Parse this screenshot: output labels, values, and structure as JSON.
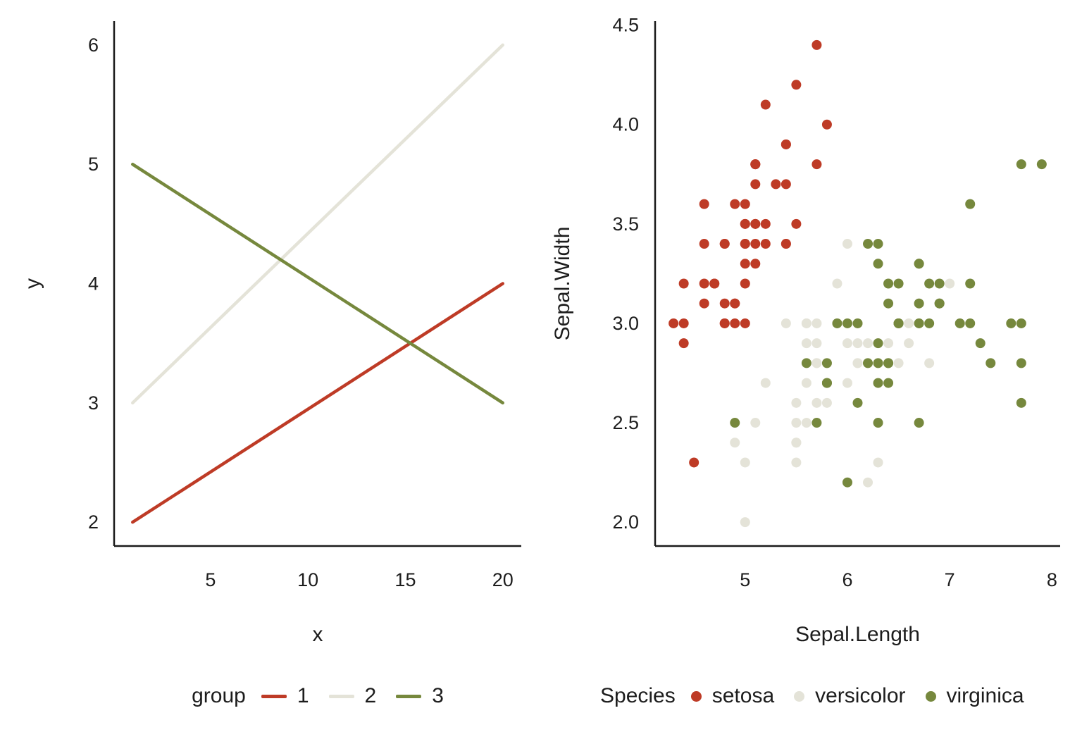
{
  "figure": {
    "background": "#ffffff",
    "text_color": "#1d1d1d",
    "axis_color": "#1a1a1a"
  },
  "chart_data": [
    {
      "type": "line",
      "title": "",
      "xlabel": "x",
      "ylabel": "y",
      "legend_title": "group",
      "legend_position": "bottom",
      "grid": false,
      "xlim": [
        0.05,
        20.95
      ],
      "ylim": [
        1.8,
        6.2
      ],
      "x_ticks": [
        {
          "v": 5,
          "label": "5"
        },
        {
          "v": 10,
          "label": "10"
        },
        {
          "v": 15,
          "label": "15"
        },
        {
          "v": 20,
          "label": "20"
        }
      ],
      "y_ticks": [
        {
          "v": 2,
          "label": "2"
        },
        {
          "v": 3,
          "label": "3"
        },
        {
          "v": 4,
          "label": "4"
        },
        {
          "v": 5,
          "label": "5"
        },
        {
          "v": 6,
          "label": "6"
        }
      ],
      "series": [
        {
          "name": "1",
          "color": "#BE3B26",
          "points": [
            [
              1,
              2
            ],
            [
              20,
              4
            ]
          ]
        },
        {
          "name": "2",
          "color": "#E4E3D8",
          "points": [
            [
              1,
              3
            ],
            [
              20,
              6
            ]
          ]
        },
        {
          "name": "3",
          "color": "#76883D",
          "points": [
            [
              1,
              5
            ],
            [
              20,
              3
            ]
          ]
        }
      ]
    },
    {
      "type": "scatter",
      "title": "",
      "xlabel": "Sepal.Length",
      "ylabel": "Sepal.Width",
      "legend_title": "Species",
      "legend_position": "bottom",
      "grid": false,
      "xlim": [
        4.12,
        8.08
      ],
      "ylim": [
        1.88,
        4.52
      ],
      "x_ticks": [
        {
          "v": 5,
          "label": "5"
        },
        {
          "v": 6,
          "label": "6"
        },
        {
          "v": 7,
          "label": "7"
        },
        {
          "v": 8,
          "label": "8"
        }
      ],
      "y_ticks": [
        {
          "v": 2.0,
          "label": "2.0"
        },
        {
          "v": 2.5,
          "label": "2.5"
        },
        {
          "v": 3.0,
          "label": "3.0"
        },
        {
          "v": 3.5,
          "label": "3.5"
        },
        {
          "v": 4.0,
          "label": "4.0"
        },
        {
          "v": 4.5,
          "label": "4.5"
        }
      ],
      "series": [
        {
          "name": "setosa",
          "color": "#BE3B26",
          "points": [
            [
              5.1,
              3.5
            ],
            [
              4.9,
              3.0
            ],
            [
              4.7,
              3.2
            ],
            [
              4.6,
              3.1
            ],
            [
              5.0,
              3.6
            ],
            [
              5.4,
              3.9
            ],
            [
              4.6,
              3.4
            ],
            [
              5.0,
              3.4
            ],
            [
              4.4,
              2.9
            ],
            [
              4.9,
              3.1
            ],
            [
              5.4,
              3.7
            ],
            [
              4.8,
              3.4
            ],
            [
              4.8,
              3.0
            ],
            [
              4.3,
              3.0
            ],
            [
              5.8,
              4.0
            ],
            [
              5.7,
              4.4
            ],
            [
              5.4,
              3.9
            ],
            [
              5.1,
              3.5
            ],
            [
              5.7,
              3.8
            ],
            [
              5.1,
              3.8
            ],
            [
              5.4,
              3.4
            ],
            [
              5.1,
              3.7
            ],
            [
              4.6,
              3.6
            ],
            [
              5.1,
              3.3
            ],
            [
              4.8,
              3.4
            ],
            [
              5.0,
              3.0
            ],
            [
              5.0,
              3.4
            ],
            [
              5.2,
              3.5
            ],
            [
              5.2,
              3.4
            ],
            [
              4.7,
              3.2
            ],
            [
              4.8,
              3.1
            ],
            [
              5.4,
              3.4
            ],
            [
              5.2,
              4.1
            ],
            [
              5.5,
              4.2
            ],
            [
              4.9,
              3.1
            ],
            [
              5.0,
              3.2
            ],
            [
              5.5,
              3.5
            ],
            [
              4.9,
              3.6
            ],
            [
              4.4,
              3.0
            ],
            [
              5.1,
              3.4
            ],
            [
              5.0,
              3.5
            ],
            [
              4.5,
              2.3
            ],
            [
              4.4,
              3.2
            ],
            [
              5.0,
              3.5
            ],
            [
              5.1,
              3.8
            ],
            [
              4.8,
              3.0
            ],
            [
              5.1,
              3.8
            ],
            [
              4.6,
              3.2
            ],
            [
              5.3,
              3.7
            ],
            [
              5.0,
              3.3
            ]
          ]
        },
        {
          "name": "versicolor",
          "color": "#E4E3D8",
          "points": [
            [
              7.0,
              3.2
            ],
            [
              6.4,
              3.2
            ],
            [
              6.9,
              3.1
            ],
            [
              5.5,
              2.3
            ],
            [
              6.5,
              2.8
            ],
            [
              5.7,
              2.8
            ],
            [
              6.3,
              3.3
            ],
            [
              4.9,
              2.4
            ],
            [
              6.6,
              2.9
            ],
            [
              5.2,
              2.7
            ],
            [
              5.0,
              2.0
            ],
            [
              5.9,
              3.0
            ],
            [
              6.0,
              2.2
            ],
            [
              6.1,
              2.9
            ],
            [
              5.6,
              2.9
            ],
            [
              6.7,
              3.1
            ],
            [
              5.6,
              3.0
            ],
            [
              5.8,
              2.7
            ],
            [
              6.2,
              2.2
            ],
            [
              5.6,
              2.5
            ],
            [
              5.9,
              3.2
            ],
            [
              6.1,
              2.8
            ],
            [
              6.3,
              2.5
            ],
            [
              6.1,
              2.8
            ],
            [
              6.4,
              2.9
            ],
            [
              6.6,
              3.0
            ],
            [
              6.8,
              2.8
            ],
            [
              6.7,
              3.0
            ],
            [
              6.0,
              2.9
            ],
            [
              5.7,
              2.6
            ],
            [
              5.5,
              2.4
            ],
            [
              5.5,
              2.4
            ],
            [
              5.8,
              2.7
            ],
            [
              6.0,
              2.7
            ],
            [
              5.4,
              3.0
            ],
            [
              6.0,
              3.4
            ],
            [
              6.7,
              3.1
            ],
            [
              6.3,
              2.3
            ],
            [
              5.6,
              3.0
            ],
            [
              5.5,
              2.5
            ],
            [
              5.5,
              2.6
            ],
            [
              6.1,
              3.0
            ],
            [
              5.8,
              2.6
            ],
            [
              5.0,
              2.3
            ],
            [
              5.6,
              2.7
            ],
            [
              5.7,
              3.0
            ],
            [
              5.7,
              2.9
            ],
            [
              6.2,
              2.9
            ],
            [
              5.1,
              2.5
            ],
            [
              5.7,
              2.8
            ]
          ]
        },
        {
          "name": "virginica",
          "color": "#76883D",
          "points": [
            [
              6.3,
              3.3
            ],
            [
              5.8,
              2.7
            ],
            [
              7.1,
              3.0
            ],
            [
              6.3,
              2.9
            ],
            [
              6.5,
              3.0
            ],
            [
              7.6,
              3.0
            ],
            [
              4.9,
              2.5
            ],
            [
              7.3,
              2.9
            ],
            [
              6.7,
              2.5
            ],
            [
              7.2,
              3.6
            ],
            [
              6.5,
              3.2
            ],
            [
              6.4,
              2.7
            ],
            [
              6.8,
              3.0
            ],
            [
              5.7,
              2.5
            ],
            [
              5.8,
              2.8
            ],
            [
              6.4,
              3.2
            ],
            [
              6.5,
              3.0
            ],
            [
              7.7,
              3.8
            ],
            [
              7.7,
              2.6
            ],
            [
              6.0,
              2.2
            ],
            [
              6.9,
              3.2
            ],
            [
              5.6,
              2.8
            ],
            [
              7.7,
              2.8
            ],
            [
              6.3,
              2.7
            ],
            [
              6.7,
              3.3
            ],
            [
              7.2,
              3.2
            ],
            [
              6.2,
              2.8
            ],
            [
              6.1,
              3.0
            ],
            [
              6.4,
              2.8
            ],
            [
              7.2,
              3.0
            ],
            [
              7.4,
              2.8
            ],
            [
              7.9,
              3.8
            ],
            [
              6.4,
              2.8
            ],
            [
              6.3,
              2.8
            ],
            [
              6.1,
              2.6
            ],
            [
              7.7,
              3.0
            ],
            [
              6.3,
              3.4
            ],
            [
              6.4,
              3.1
            ],
            [
              6.0,
              3.0
            ],
            [
              6.9,
              3.1
            ],
            [
              6.7,
              3.1
            ],
            [
              6.9,
              3.1
            ],
            [
              5.8,
              2.7
            ],
            [
              6.8,
              3.2
            ],
            [
              6.7,
              3.3
            ],
            [
              6.7,
              3.0
            ],
            [
              6.3,
              2.5
            ],
            [
              6.5,
              3.0
            ],
            [
              6.2,
              3.4
            ],
            [
              5.9,
              3.0
            ]
          ]
        }
      ]
    }
  ]
}
